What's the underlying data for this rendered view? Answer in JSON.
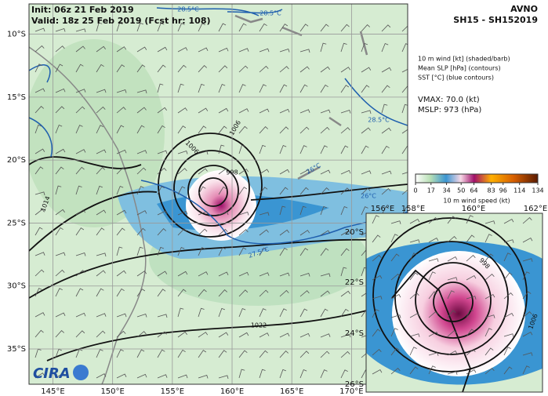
{
  "header": {
    "init": "Init:  06z 21 Feb 2019",
    "valid": "Valid: 18z 25 Feb 2019 (Fcst hr: 108)",
    "model": "AVNO",
    "storm": "SH15 - SH152019"
  },
  "legend": [
    "10 m wind [kt] (shaded/barb)",
    "Mean SLP [hPa] (contours)",
    "SST [°C] (blue contours)"
  ],
  "stats": [
    "VMAX:  70.0 (kt)",
    "MSLP:  973 (hPa)"
  ],
  "colorbar": {
    "label": "10 m wind speed (kt)",
    "range": [
      0,
      134
    ],
    "ticks": [
      0,
      17,
      34,
      50,
      64,
      83,
      96,
      114,
      134
    ]
  },
  "map": {
    "lonlim": [
      143,
      174.7
    ],
    "latlim": [
      -7.6,
      -37.8
    ],
    "xticks": [
      {
        "value": 145,
        "label": "145°E"
      },
      {
        "value": 150,
        "label": "150°E"
      },
      {
        "value": 155,
        "label": "155°E"
      },
      {
        "value": 160,
        "label": "160°E"
      },
      {
        "value": 165,
        "label": "165°E"
      },
      {
        "value": 170,
        "label": "170°E"
      }
    ],
    "yticks": [
      {
        "value": -10,
        "label": "10°S"
      },
      {
        "value": -15,
        "label": "15°S"
      },
      {
        "value": -20,
        "label": "20°S"
      },
      {
        "value": -25,
        "label": "25°S"
      },
      {
        "value": -30,
        "label": "30°S"
      },
      {
        "value": -35,
        "label": "35°S"
      }
    ]
  },
  "inset": {
    "xticks": [
      "156°E",
      "158°E",
      "160°E",
      "162°E"
    ],
    "yticks": [
      "20°S",
      "22°S",
      "24°S",
      "26°S"
    ]
  },
  "contour_labels": [
    "1006",
    "1006",
    "998",
    "1014",
    "1022",
    "28.5°C",
    "28.5°C",
    "28.5°C",
    "26°C",
    "26°C",
    "27.5°C",
    "998",
    "1006"
  ],
  "logo": "CIRA"
}
